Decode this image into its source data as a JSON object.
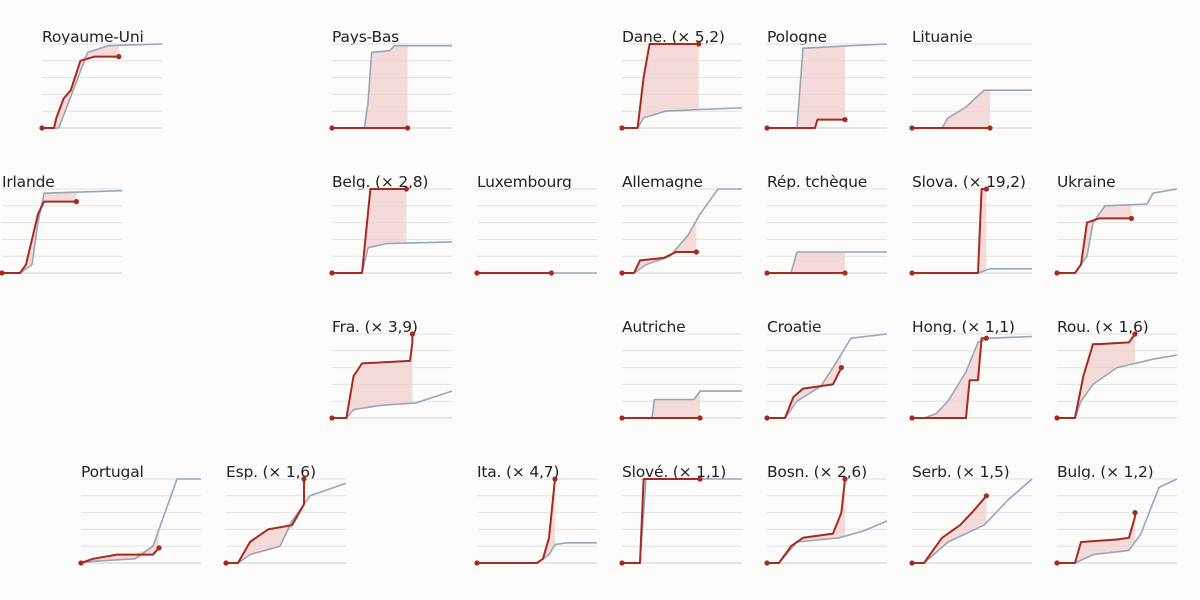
{
  "colors": {
    "observed": "#a72a1f",
    "reference": "#9aa6b4",
    "gap_fill": "#f2cfcd",
    "grid": "#e2e2e2"
  },
  "chart_data": {
    "type": "line",
    "description_scale": "small multiples, cumulative series per country",
    "y_range": [
      0,
      100
    ],
    "x_range": [
      0,
      100
    ],
    "legend": "",
    "panels": [
      {
        "id": "royaume-uni",
        "title": "Royaume-Uni",
        "row": 0,
        "col": 0,
        "reference": [
          [
            0,
            0
          ],
          [
            14,
            0
          ],
          [
            22,
            30
          ],
          [
            30,
            60
          ],
          [
            38,
            90
          ],
          [
            55,
            98
          ],
          [
            100,
            100
          ]
        ],
        "observed": [
          [
            0,
            0
          ],
          [
            10,
            0
          ],
          [
            12,
            12
          ],
          [
            18,
            35
          ],
          [
            24,
            45
          ],
          [
            32,
            80
          ],
          [
            44,
            85
          ],
          [
            64,
            85
          ]
        ]
      },
      {
        "id": "pays-bas",
        "title": "Pays-Bas",
        "row": 0,
        "col": 2,
        "reference": [
          [
            0,
            0
          ],
          [
            27,
            0
          ],
          [
            30,
            30
          ],
          [
            33,
            90
          ],
          [
            48,
            92
          ],
          [
            52,
            98
          ],
          [
            100,
            98
          ]
        ],
        "observed": [
          [
            0,
            0
          ],
          [
            63,
            0
          ]
        ]
      },
      {
        "id": "danemark",
        "title": "Dane. (× 5,2)",
        "row": 0,
        "col": 4,
        "reference": [
          [
            0,
            0
          ],
          [
            13,
            0
          ],
          [
            18,
            12
          ],
          [
            36,
            20
          ],
          [
            65,
            22
          ],
          [
            100,
            24
          ]
        ],
        "observed": [
          [
            0,
            0
          ],
          [
            13,
            0
          ],
          [
            18,
            60
          ],
          [
            23,
            100
          ],
          [
            64,
            100
          ]
        ]
      },
      {
        "id": "pologne",
        "title": "Pologne",
        "row": 0,
        "col": 5,
        "reference": [
          [
            0,
            0
          ],
          [
            25,
            0
          ],
          [
            30,
            95
          ],
          [
            70,
            98
          ],
          [
            100,
            100
          ]
        ],
        "observed": [
          [
            0,
            0
          ],
          [
            40,
            0
          ],
          [
            42,
            10
          ],
          [
            65,
            10
          ]
        ]
      },
      {
        "id": "lituanie",
        "title": "Lituanie",
        "row": 0,
        "col": 6,
        "reference": [
          [
            0,
            0
          ],
          [
            25,
            0
          ],
          [
            30,
            12
          ],
          [
            45,
            25
          ],
          [
            60,
            45
          ],
          [
            100,
            45
          ]
        ],
        "observed": [
          [
            0,
            0
          ],
          [
            65,
            0
          ]
        ]
      },
      {
        "id": "irlande",
        "title": "Irlande",
        "row": 1,
        "col": 0,
        "reference": [
          [
            0,
            0
          ],
          [
            15,
            0
          ],
          [
            25,
            10
          ],
          [
            30,
            60
          ],
          [
            35,
            95
          ],
          [
            100,
            98
          ]
        ],
        "observed": [
          [
            0,
            0
          ],
          [
            15,
            0
          ],
          [
            20,
            10
          ],
          [
            30,
            70
          ],
          [
            35,
            85
          ],
          [
            62,
            85
          ]
        ]
      },
      {
        "id": "belgique",
        "title": "Belg. (× 2,8)",
        "row": 1,
        "col": 2,
        "reference": [
          [
            0,
            0
          ],
          [
            25,
            0
          ],
          [
            30,
            30
          ],
          [
            45,
            35
          ],
          [
            100,
            37
          ]
        ],
        "observed": [
          [
            0,
            0
          ],
          [
            25,
            0
          ],
          [
            32,
            100
          ],
          [
            62,
            100
          ]
        ]
      },
      {
        "id": "luxembourg",
        "title": "Luxembourg",
        "row": 1,
        "col": 3,
        "reference": [
          [
            0,
            0
          ],
          [
            100,
            0
          ]
        ],
        "observed": [
          [
            0,
            0
          ],
          [
            62,
            0
          ]
        ]
      },
      {
        "id": "allemagne",
        "title": "Allemagne",
        "row": 1,
        "col": 4,
        "reference": [
          [
            0,
            0
          ],
          [
            10,
            0
          ],
          [
            20,
            10
          ],
          [
            40,
            20
          ],
          [
            55,
            45
          ],
          [
            65,
            70
          ],
          [
            80,
            100
          ],
          [
            100,
            100
          ]
        ],
        "observed": [
          [
            0,
            0
          ],
          [
            10,
            0
          ],
          [
            15,
            15
          ],
          [
            35,
            18
          ],
          [
            45,
            25
          ],
          [
            62,
            25
          ]
        ]
      },
      {
        "id": "rep-tcheque",
        "title": "Rép. tchèque",
        "row": 1,
        "col": 5,
        "reference": [
          [
            0,
            0
          ],
          [
            20,
            0
          ],
          [
            25,
            25
          ],
          [
            100,
            25
          ]
        ],
        "observed": [
          [
            0,
            0
          ],
          [
            65,
            0
          ]
        ]
      },
      {
        "id": "slovaquie",
        "title": "Slova. (× 19,2)",
        "row": 1,
        "col": 6,
        "reference": [
          [
            0,
            0
          ],
          [
            55,
            0
          ],
          [
            65,
            5
          ],
          [
            100,
            5
          ]
        ],
        "observed": [
          [
            0,
            0
          ],
          [
            55,
            0
          ],
          [
            58,
            100
          ],
          [
            62,
            100
          ]
        ]
      },
      {
        "id": "ukraine",
        "title": "Ukraine",
        "row": 1,
        "col": 7,
        "reference": [
          [
            0,
            0
          ],
          [
            15,
            0
          ],
          [
            25,
            20
          ],
          [
            30,
            60
          ],
          [
            40,
            80
          ],
          [
            75,
            82
          ],
          [
            80,
            95
          ],
          [
            100,
            100
          ]
        ],
        "observed": [
          [
            0,
            0
          ],
          [
            15,
            0
          ],
          [
            20,
            10
          ],
          [
            25,
            60
          ],
          [
            35,
            65
          ],
          [
            62,
            65
          ]
        ]
      },
      {
        "id": "france",
        "title": "Fra. (× 3,9)",
        "row": 2,
        "col": 2,
        "reference": [
          [
            0,
            0
          ],
          [
            12,
            0
          ],
          [
            18,
            10
          ],
          [
            40,
            15
          ],
          [
            70,
            18
          ],
          [
            100,
            32
          ]
        ],
        "observed": [
          [
            0,
            0
          ],
          [
            12,
            0
          ],
          [
            18,
            50
          ],
          [
            25,
            65
          ],
          [
            65,
            68
          ],
          [
            67,
            90
          ],
          [
            67,
            100
          ]
        ]
      },
      {
        "id": "autriche",
        "title": "Autriche",
        "row": 2,
        "col": 4,
        "reference": [
          [
            0,
            0
          ],
          [
            25,
            0
          ],
          [
            27,
            22
          ],
          [
            60,
            22
          ],
          [
            65,
            32
          ],
          [
            100,
            32
          ]
        ],
        "observed": [
          [
            0,
            0
          ],
          [
            65,
            0
          ]
        ]
      },
      {
        "id": "croatie",
        "title": "Croatie",
        "row": 2,
        "col": 5,
        "reference": [
          [
            0,
            0
          ],
          [
            15,
            0
          ],
          [
            25,
            20
          ],
          [
            45,
            38
          ],
          [
            55,
            60
          ],
          [
            70,
            95
          ],
          [
            100,
            100
          ]
        ],
        "observed": [
          [
            0,
            0
          ],
          [
            15,
            0
          ],
          [
            22,
            25
          ],
          [
            30,
            35
          ],
          [
            55,
            40
          ],
          [
            62,
            60
          ]
        ]
      },
      {
        "id": "hongrie",
        "title": "Hong. (× 1,1)",
        "row": 2,
        "col": 6,
        "reference": [
          [
            0,
            0
          ],
          [
            10,
            0
          ],
          [
            20,
            5
          ],
          [
            30,
            20
          ],
          [
            45,
            55
          ],
          [
            55,
            90
          ],
          [
            65,
            95
          ],
          [
            100,
            97
          ]
        ],
        "observed": [
          [
            0,
            0
          ],
          [
            25,
            0
          ],
          [
            45,
            0
          ],
          [
            48,
            45
          ],
          [
            55,
            45
          ],
          [
            58,
            95
          ],
          [
            62,
            95
          ]
        ]
      },
      {
        "id": "roumanie",
        "title": "Rou. (× 1,6)",
        "row": 2,
        "col": 7,
        "reference": [
          [
            0,
            0
          ],
          [
            15,
            0
          ],
          [
            20,
            20
          ],
          [
            30,
            40
          ],
          [
            50,
            60
          ],
          [
            80,
            70
          ],
          [
            100,
            75
          ]
        ],
        "observed": [
          [
            0,
            0
          ],
          [
            15,
            0
          ],
          [
            22,
            50
          ],
          [
            30,
            88
          ],
          [
            35,
            88
          ],
          [
            60,
            90
          ],
          [
            65,
            100
          ]
        ]
      },
      {
        "id": "portugal",
        "title": "Portugal",
        "row": 3,
        "col": 0,
        "reference": [
          [
            0,
            0
          ],
          [
            10,
            2
          ],
          [
            45,
            5
          ],
          [
            60,
            20
          ],
          [
            70,
            60
          ],
          [
            80,
            100
          ],
          [
            100,
            100
          ]
        ],
        "observed": [
          [
            0,
            0
          ],
          [
            10,
            5
          ],
          [
            30,
            10
          ],
          [
            60,
            10
          ],
          [
            65,
            18
          ]
        ]
      },
      {
        "id": "espagne",
        "title": "Esp. (× 1,6)",
        "row": 3,
        "col": 1,
        "reference": [
          [
            0,
            0
          ],
          [
            10,
            0
          ],
          [
            20,
            10
          ],
          [
            45,
            20
          ],
          [
            55,
            50
          ],
          [
            70,
            80
          ],
          [
            100,
            95
          ]
        ],
        "observed": [
          [
            0,
            0
          ],
          [
            10,
            0
          ],
          [
            20,
            25
          ],
          [
            35,
            40
          ],
          [
            55,
            45
          ],
          [
            65,
            70
          ],
          [
            65,
            100
          ]
        ]
      },
      {
        "id": "italie",
        "title": "Ita. (× 4,7)",
        "row": 3,
        "col": 3,
        "reference": [
          [
            0,
            0
          ],
          [
            50,
            0
          ],
          [
            60,
            10
          ],
          [
            65,
            22
          ],
          [
            75,
            24
          ],
          [
            100,
            24
          ]
        ],
        "observed": [
          [
            0,
            0
          ],
          [
            50,
            0
          ],
          [
            55,
            5
          ],
          [
            60,
            30
          ],
          [
            65,
            100
          ]
        ]
      },
      {
        "id": "slovenie",
        "title": "Slové. (× 1,1)",
        "row": 3,
        "col": 4,
        "reference": [
          [
            0,
            0
          ],
          [
            15,
            0
          ],
          [
            20,
            100
          ],
          [
            100,
            100
          ]
        ],
        "observed": [
          [
            0,
            0
          ],
          [
            15,
            0
          ],
          [
            18,
            100
          ],
          [
            62,
            100
          ],
          [
            65,
            100
          ]
        ]
      },
      {
        "id": "bosnie",
        "title": "Bosn. (× 2,6)",
        "row": 3,
        "col": 5,
        "reference": [
          [
            0,
            0
          ],
          [
            10,
            0
          ],
          [
            25,
            25
          ],
          [
            60,
            30
          ],
          [
            80,
            38
          ],
          [
            100,
            50
          ]
        ],
        "observed": [
          [
            0,
            0
          ],
          [
            10,
            0
          ],
          [
            20,
            20
          ],
          [
            30,
            30
          ],
          [
            55,
            35
          ],
          [
            62,
            60
          ],
          [
            65,
            100
          ]
        ]
      },
      {
        "id": "serbie",
        "title": "Serb. (× 1,5)",
        "row": 3,
        "col": 6,
        "reference": [
          [
            0,
            0
          ],
          [
            10,
            0
          ],
          [
            30,
            25
          ],
          [
            60,
            45
          ],
          [
            80,
            75
          ],
          [
            100,
            100
          ]
        ],
        "observed": [
          [
            0,
            0
          ],
          [
            10,
            0
          ],
          [
            15,
            10
          ],
          [
            25,
            30
          ],
          [
            40,
            45
          ],
          [
            50,
            60
          ],
          [
            62,
            80
          ]
        ]
      },
      {
        "id": "bulgarie",
        "title": "Bulg. (× 1,2)",
        "row": 3,
        "col": 7,
        "reference": [
          [
            0,
            0
          ],
          [
            15,
            0
          ],
          [
            30,
            10
          ],
          [
            60,
            15
          ],
          [
            70,
            35
          ],
          [
            85,
            90
          ],
          [
            100,
            100
          ]
        ],
        "observed": [
          [
            0,
            0
          ],
          [
            15,
            0
          ],
          [
            20,
            25
          ],
          [
            50,
            28
          ],
          [
            60,
            30
          ],
          [
            65,
            55
          ],
          [
            65,
            60
          ]
        ]
      }
    ]
  }
}
